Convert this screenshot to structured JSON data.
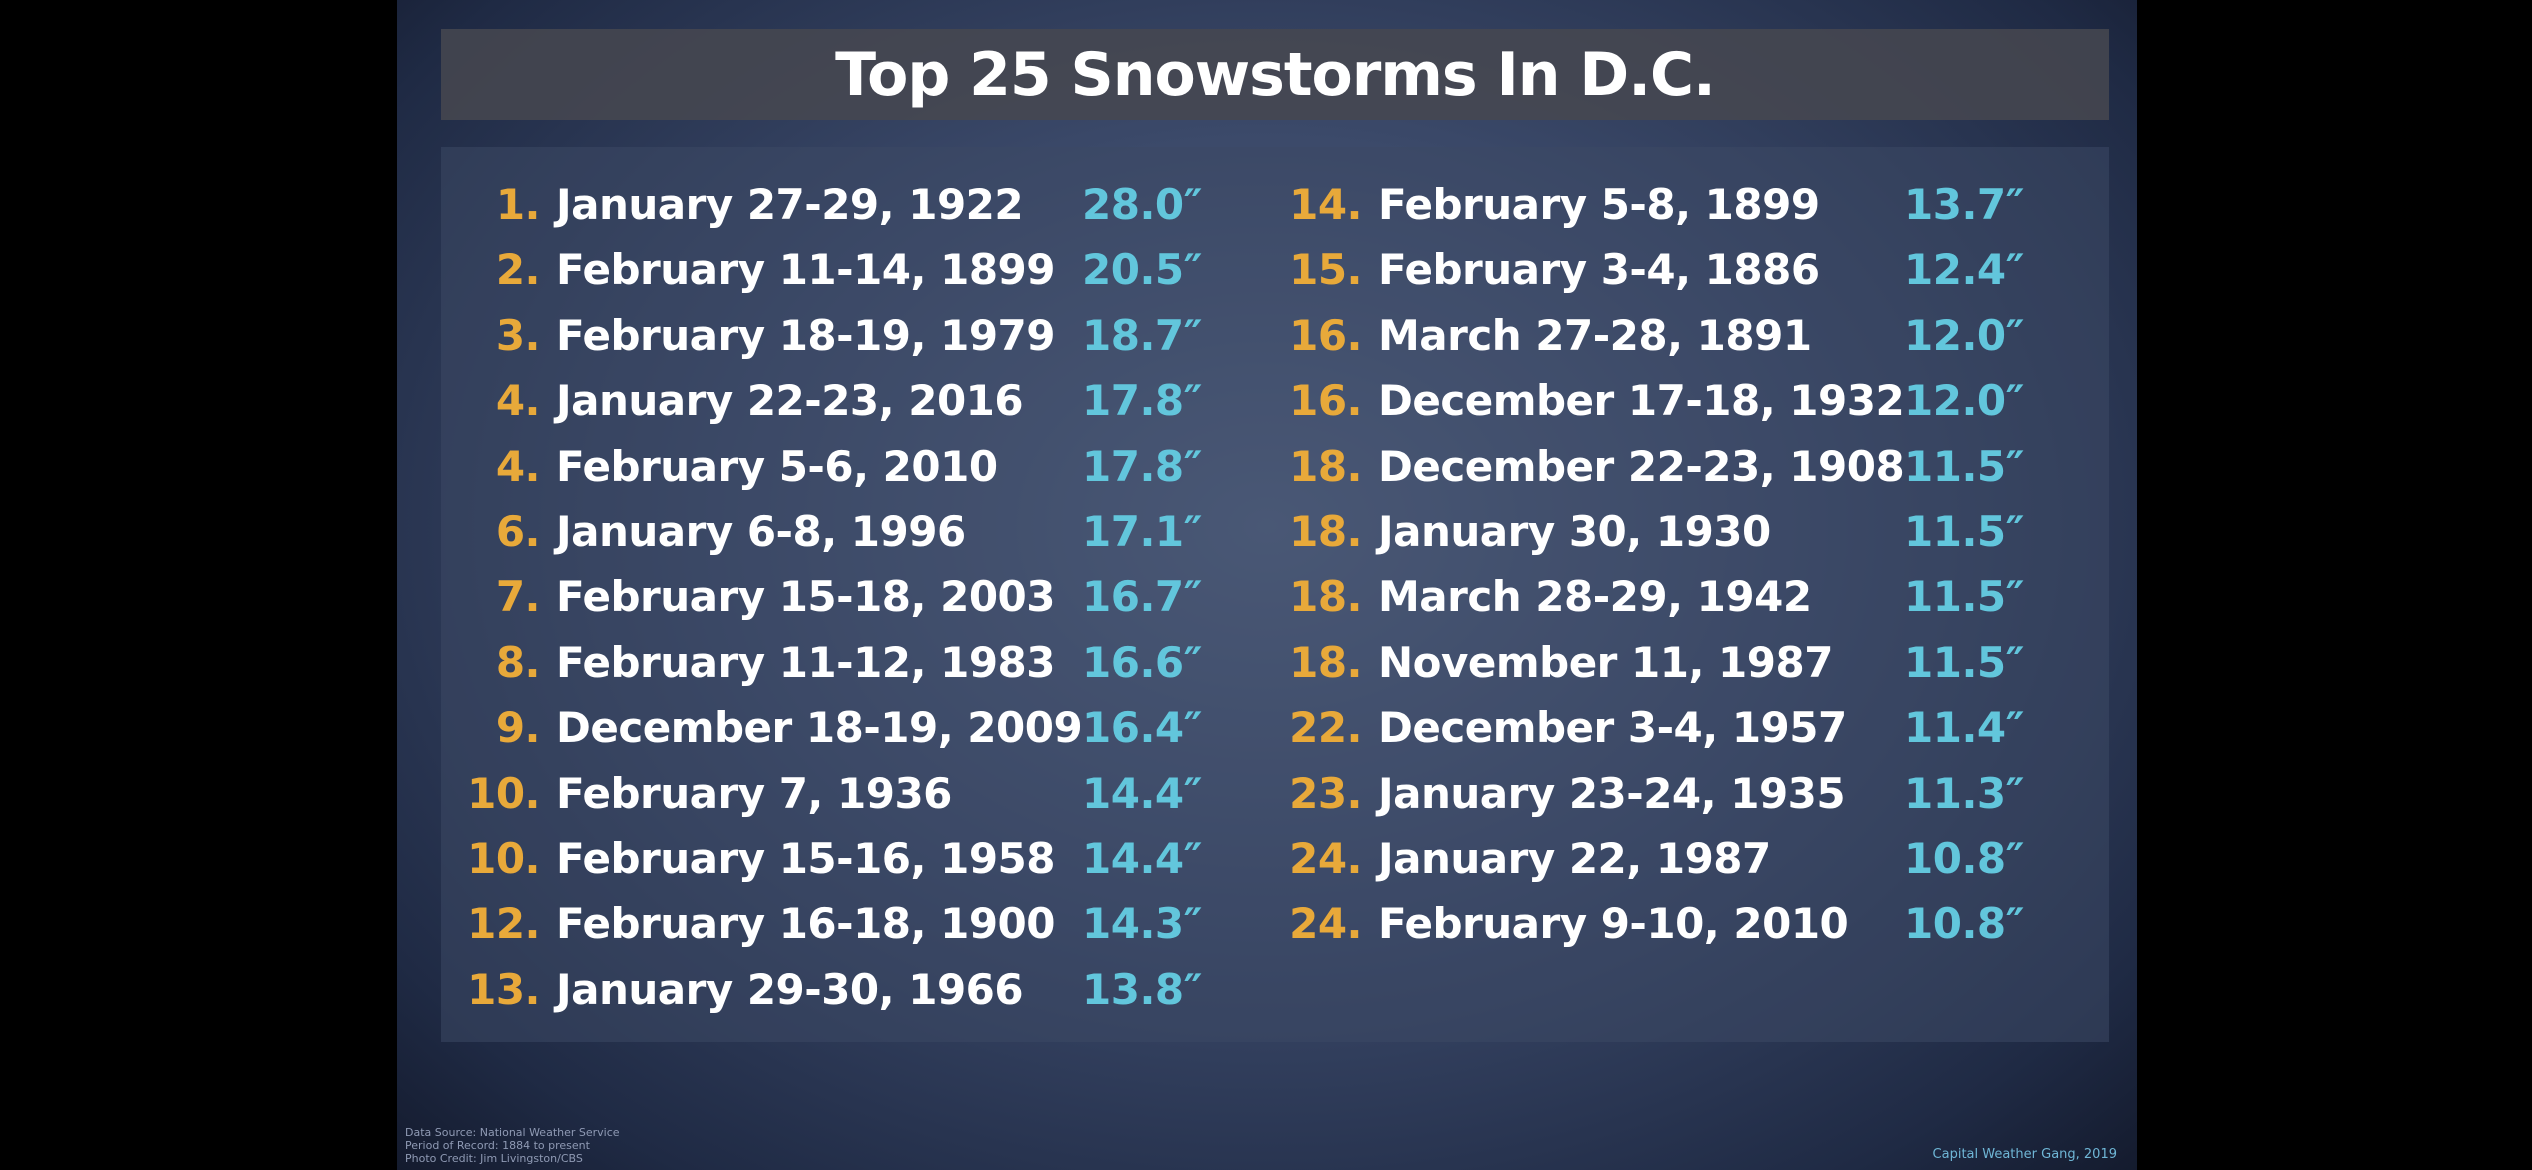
{
  "title": "Top 25 Snowstorms In D.C.",
  "columns": [
    {
      "rows": [
        [
          "1.",
          "January 27-29, 1922",
          "28.0″"
        ],
        [
          "2.",
          "February 11-14, 1899",
          "20.5″"
        ],
        [
          "3.",
          "February 18-19, 1979",
          "18.7″"
        ],
        [
          "4.",
          "January 22-23, 2016",
          "17.8″"
        ],
        [
          "4.",
          "February 5-6, 2010",
          "17.8″"
        ],
        [
          "6.",
          "January 6-8, 1996",
          "17.1″"
        ],
        [
          "7.",
          "February 15-18, 2003",
          "16.7″"
        ],
        [
          "8.",
          "February 11-12, 1983",
          "16.6″"
        ],
        [
          "9.",
          "December 18-19, 2009",
          "16.4″"
        ],
        [
          "10.",
          "February 7, 1936",
          "14.4″"
        ],
        [
          "10.",
          "February 15-16, 1958",
          "14.4″"
        ],
        [
          "12.",
          "February 16-18, 1900",
          "14.3″"
        ],
        [
          "13.",
          "January 29-30, 1966",
          "13.8″"
        ]
      ]
    },
    {
      "rows": [
        [
          "14.",
          "February 5-8, 1899",
          "13.7″"
        ],
        [
          "15.",
          "February 3-4, 1886",
          "12.4″"
        ],
        [
          "16.",
          "March 27-28, 1891",
          "12.0″"
        ],
        [
          "16.",
          "December 17-18, 1932",
          "12.0″"
        ],
        [
          "18.",
          "December 22-23, 1908",
          "11.5″"
        ],
        [
          "18.",
          "January 30, 1930",
          "11.5″"
        ],
        [
          "18.",
          "March 28-29, 1942",
          "11.5″"
        ],
        [
          "18.",
          "November 11, 1987",
          "11.5″"
        ],
        [
          "22.",
          "December 3-4, 1957",
          "11.4″"
        ],
        [
          "23.",
          "January 23-24, 1935",
          "11.3″"
        ],
        [
          "24.",
          "January 22, 1987",
          "10.8″"
        ],
        [
          "24.",
          "February 9-10, 2010",
          "10.8″"
        ]
      ]
    }
  ],
  "footer": {
    "source": [
      "Data Source: National Weather Service",
      "Period of Record: 1884 to present",
      "Photo Credit: Jim Livingston/CBS"
    ],
    "credit": "Capital Weather Gang, 2019"
  }
}
